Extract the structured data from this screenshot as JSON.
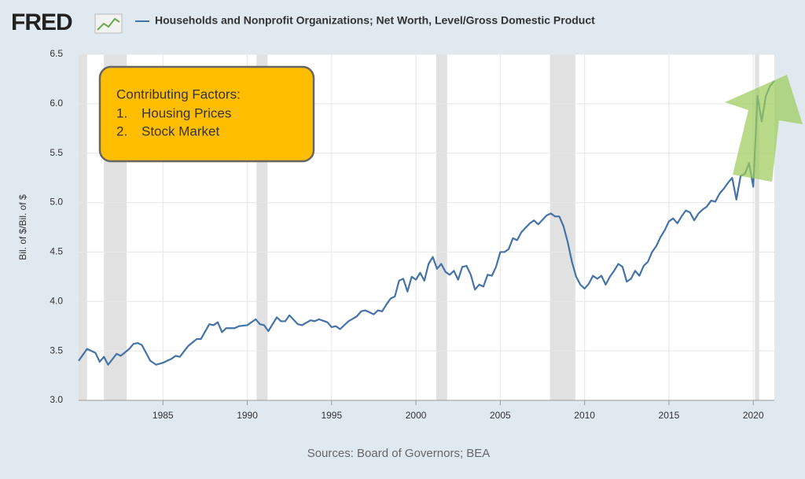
{
  "chart_data": {
    "type": "line",
    "logo": "FRED",
    "title": "Households and Nonprofit Organizations; Net Worth, Level/Gross Domestic Product",
    "y_label": "Bil. of $/Bil. of $",
    "source": "Sources: Board of Governors; BEA",
    "annotation": {
      "heading": "Contributing Factors:",
      "items": [
        [
          "1.",
          "Housing Prices"
        ],
        [
          "2.",
          "Stock Market"
        ]
      ]
    },
    "xlim": [
      1980,
      2021.25
    ],
    "xticks": [
      1985,
      1990,
      1995,
      2000,
      2005,
      2010,
      2015,
      2020
    ],
    "ylim": [
      3.0,
      6.5
    ],
    "yticks": [
      {
        "value": 3.0,
        "label": "3.0"
      },
      {
        "value": 3.5,
        "label": "3.5"
      },
      {
        "value": 4.0,
        "label": "4.0"
      },
      {
        "value": 4.5,
        "label": "4.5"
      },
      {
        "value": 5.0,
        "label": "5.0"
      },
      {
        "value": 5.5,
        "label": "5.5"
      },
      {
        "value": 6.0,
        "label": "6.0"
      },
      {
        "value": 6.5,
        "label": "6.5"
      }
    ],
    "grid": true,
    "recessions": [
      [
        1980,
        1980.5
      ],
      [
        1981.5,
        1982.85
      ],
      [
        1990.55,
        1991.2
      ],
      [
        2001.2,
        2001.85
      ],
      [
        2007.95,
        2009.45
      ],
      [
        2020.1,
        2020.35
      ]
    ],
    "recession_color": "#e1e1e1",
    "x": [
      1980,
      1980.5,
      1981,
      1981.25,
      1981.5,
      1981.75,
      1982.25,
      1982.5,
      1983,
      1983.25,
      1983.5,
      1983.75,
      1984.25,
      1984.6,
      1985,
      1985.5,
      1985.75,
      1986,
      1986.5,
      1987,
      1987.25,
      1987.75,
      1988,
      1988.25,
      1988.5,
      1988.75,
      1989.25,
      1989.5,
      1990,
      1990.5,
      1990.75,
      1991,
      1991.25,
      1991.75,
      1992,
      1992.25,
      1992.5,
      1993,
      1993.25,
      1993.75,
      1994,
      1994.25,
      1994.75,
      1995,
      1995.25,
      1995.5,
      1996,
      1996.5,
      1996.75,
      1997,
      1997.5,
      1997.75,
      1998,
      1998.25,
      1998.5,
      1998.75,
      1999,
      1999.25,
      1999.5,
      1999.75,
      2000,
      2000.25,
      2000.5,
      2000.75,
      2001,
      2001.25,
      2001.5,
      2001.75,
      2002,
      2002.25,
      2002.5,
      2002.75,
      2003,
      2003.25,
      2003.5,
      2003.75,
      2004,
      2004.25,
      2004.5,
      2004.75,
      2005,
      2005.25,
      2005.5,
      2005.75,
      2006,
      2006.25,
      2006.75,
      2007,
      2007.25,
      2007.75,
      2008,
      2008.25,
      2008.5,
      2008.75,
      2009,
      2009.25,
      2009.5,
      2009.75,
      2010,
      2010.25,
      2010.5,
      2010.75,
      2011,
      2011.25,
      2011.5,
      2011.75,
      2012,
      2012.25,
      2012.5,
      2012.75,
      2013,
      2013.25,
      2013.5,
      2013.75,
      2014,
      2014.25,
      2014.5,
      2014.75,
      2015,
      2015.25,
      2015.5,
      2015.75,
      2016,
      2016.25,
      2016.5,
      2016.75,
      2017,
      2017.25,
      2017.5,
      2017.75,
      2018,
      2018.25,
      2018.5,
      2018.75,
      2019,
      2019.25,
      2019.5,
      2019.75,
      2020,
      2020.25,
      2020.5,
      2020.75,
      2021,
      2021.25
    ],
    "series": [
      {
        "name": "Households and Nonprofit Organizations; Net Worth, Level/Gross Domestic Product",
        "color": "#4572a7",
        "values": [
          3.4,
          3.52,
          3.48,
          3.39,
          3.44,
          3.36,
          3.47,
          3.45,
          3.52,
          3.57,
          3.58,
          3.56,
          3.4,
          3.36,
          3.38,
          3.42,
          3.45,
          3.44,
          3.55,
          3.62,
          3.62,
          3.77,
          3.76,
          3.79,
          3.69,
          3.73,
          3.73,
          3.75,
          3.76,
          3.82,
          3.77,
          3.76,
          3.7,
          3.84,
          3.8,
          3.8,
          3.86,
          3.77,
          3.76,
          3.81,
          3.8,
          3.82,
          3.79,
          3.74,
          3.75,
          3.72,
          3.8,
          3.85,
          3.9,
          3.91,
          3.87,
          3.91,
          3.9,
          3.97,
          4.03,
          4.05,
          4.21,
          4.23,
          4.1,
          4.25,
          4.22,
          4.29,
          4.21,
          4.38,
          4.45,
          4.33,
          4.38,
          4.3,
          4.27,
          4.31,
          4.22,
          4.35,
          4.36,
          4.27,
          4.12,
          4.17,
          4.15,
          4.27,
          4.26,
          4.35,
          4.5,
          4.5,
          4.53,
          4.64,
          4.62,
          4.7,
          4.79,
          4.82,
          4.78,
          4.87,
          4.89,
          4.86,
          4.86,
          4.76,
          4.6,
          4.4,
          4.25,
          4.17,
          4.13,
          4.18,
          4.26,
          4.23,
          4.26,
          4.17,
          4.25,
          4.31,
          4.38,
          4.35,
          4.2,
          4.23,
          4.31,
          4.26,
          4.36,
          4.4,
          4.5,
          4.56,
          4.65,
          4.72,
          4.81,
          4.84,
          4.79,
          4.86,
          4.92,
          4.9,
          4.82,
          4.89,
          4.93,
          4.96,
          5.02,
          5.01,
          5.09,
          5.14,
          5.2,
          5.25,
          5.03,
          5.27,
          5.29,
          5.4,
          5.16,
          6.08,
          5.82,
          6.08,
          6.18,
          6.23
        ]
      }
    ]
  }
}
